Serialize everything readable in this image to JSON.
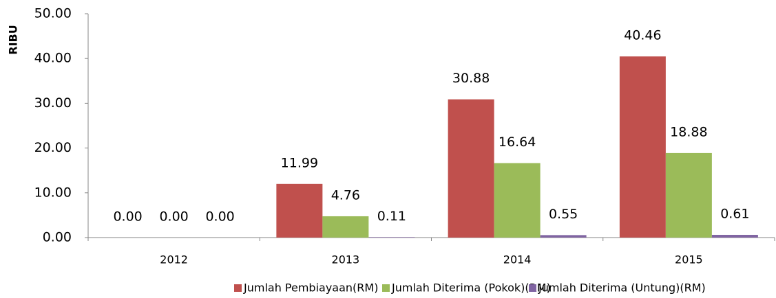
{
  "chart_data": {
    "type": "bar",
    "y_label": "RIBU",
    "categories": [
      "2012",
      "2013",
      "2014",
      "2015"
    ],
    "series": [
      {
        "name": "Jumlah Pembiayaan(RM)",
        "color": "#c0504d",
        "values": [
          0,
          11.99,
          30.88,
          40.46
        ],
        "value_labels": [
          "0.00",
          "11.99",
          "30.88",
          "40.46"
        ]
      },
      {
        "name": "Jumlah Diterima (Pokok)(RM)",
        "color": "#9bbb59",
        "values": [
          0,
          4.76,
          16.64,
          18.88
        ],
        "value_labels": [
          "0.00",
          "4.76",
          "16.64",
          "18.88"
        ]
      },
      {
        "name": "Jumlah Diterima (Untung)(RM)",
        "color": "#8064a2",
        "values": [
          0,
          0.11,
          0.55,
          0.61
        ],
        "value_labels": [
          "0.00",
          "0.11",
          "0.55",
          "0.61"
        ]
      }
    ],
    "ylim": [
      0,
      50
    ],
    "yticks": [
      {
        "value": 0,
        "label": "0.00"
      },
      {
        "value": 10,
        "label": "10.00"
      },
      {
        "value": 20,
        "label": "20.00"
      },
      {
        "value": 30,
        "label": "30.00"
      },
      {
        "value": 40,
        "label": "40.00"
      },
      {
        "value": 50,
        "label": "50.00"
      }
    ],
    "grid": false,
    "legend": "bottom"
  }
}
